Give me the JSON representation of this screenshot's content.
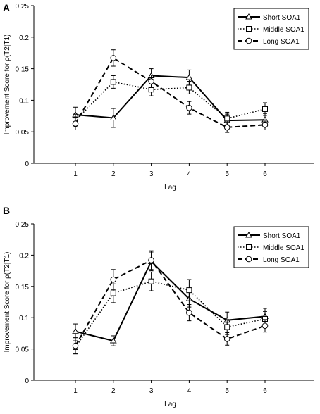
{
  "chart_data": [
    {
      "panel_label": "A",
      "type": "line",
      "xlabel": "Lag",
      "ylabel": "Improvement Score for ρ(T2|T1)",
      "x": [
        1,
        2,
        3,
        4,
        5,
        6
      ],
      "ylim": [
        0,
        0.25
      ],
      "yticks": [
        "0",
        "0.05",
        "0.1",
        "0.15",
        "0.2",
        "0.25"
      ],
      "xticks": [
        "1",
        "2",
        "3",
        "4",
        "5",
        "6"
      ],
      "grid": false,
      "legend_position": "top-right",
      "series": [
        {
          "name": "Short SOA1",
          "marker": "triangle",
          "line": "solid",
          "values": [
            0.077,
            0.072,
            0.139,
            0.136,
            0.068,
            0.069
          ],
          "errors": [
            0.012,
            0.015,
            0.011,
            0.012,
            0.01,
            0.01
          ]
        },
        {
          "name": "Middle SOA1",
          "marker": "square",
          "line": "dotted",
          "values": [
            0.068,
            0.129,
            0.117,
            0.12,
            0.071,
            0.086
          ],
          "errors": [
            0.01,
            0.01,
            0.01,
            0.01,
            0.01,
            0.01
          ]
        },
        {
          "name": "Long SOA1",
          "marker": "circle",
          "line": "dashed",
          "values": [
            0.063,
            0.167,
            0.13,
            0.088,
            0.057,
            0.061
          ],
          "errors": [
            0.01,
            0.013,
            0.01,
            0.01,
            0.008,
            0.008
          ]
        }
      ]
    },
    {
      "panel_label": "B",
      "type": "line",
      "xlabel": "Lag",
      "ylabel": "Improvement Score for ρ(T2|T1)",
      "x": [
        1,
        2,
        3,
        4,
        5,
        6
      ],
      "ylim": [
        0,
        0.25
      ],
      "yticks": [
        "0",
        "0.05",
        "0.1",
        "0.15",
        "0.2",
        "0.25"
      ],
      "xticks": [
        "1",
        "2",
        "3",
        "4",
        "5",
        "6"
      ],
      "grid": false,
      "legend_position": "top-right",
      "series": [
        {
          "name": "Short SOA1",
          "marker": "triangle",
          "line": "solid",
          "values": [
            0.078,
            0.063,
            0.19,
            0.13,
            0.096,
            0.102
          ],
          "errors": [
            0.012,
            0.008,
            0.015,
            0.013,
            0.013,
            0.013
          ]
        },
        {
          "name": "Middle SOA1",
          "marker": "square",
          "line": "dotted",
          "values": [
            0.053,
            0.139,
            0.158,
            0.144,
            0.085,
            0.098
          ],
          "errors": [
            0.01,
            0.015,
            0.015,
            0.017,
            0.012,
            0.012
          ]
        },
        {
          "name": "Long SOA1",
          "marker": "circle",
          "line": "dashed",
          "values": [
            0.055,
            0.161,
            0.192,
            0.108,
            0.066,
            0.087
          ],
          "errors": [
            0.013,
            0.016,
            0.015,
            0.013,
            0.01,
            0.01
          ]
        }
      ]
    }
  ]
}
